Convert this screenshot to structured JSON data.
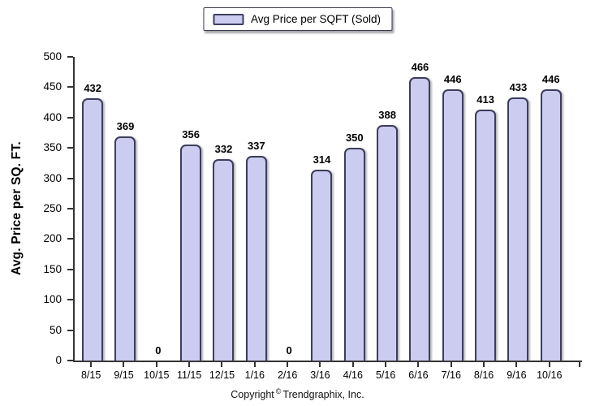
{
  "legend": {
    "swatch_color": "#ccccf0"
  },
  "y_axis": {
    "title": "Avg. Price per SQ. FT."
  },
  "footer": {
    "prefix": "Copyright",
    "symbol": "©",
    "company": "Trendgraphix, Inc."
  },
  "chart_data": {
    "type": "bar",
    "title": "",
    "categories": [
      "8/15",
      "9/15",
      "10/15",
      "11/15",
      "12/15",
      "1/16",
      "2/16",
      "3/16",
      "4/16",
      "5/16",
      "6/16",
      "7/16",
      "8/16",
      "9/16",
      "10/16"
    ],
    "values": [
      432,
      369,
      0,
      356,
      332,
      337,
      0,
      314,
      350,
      388,
      466,
      446,
      413,
      433,
      446
    ],
    "xlabel": "",
    "ylabel": "Avg. Price per SQ. FT.",
    "ylim": [
      0,
      500
    ],
    "ytick_step": 50,
    "grid": false,
    "legend": [
      "Avg Price per SQFT (Sold)"
    ],
    "legend_position": "top-center",
    "bar_fill": "#ccccf0",
    "bar_border": "#3d3d5c",
    "axis_color": "#333333",
    "value_labels": "shown above bars, bold"
  }
}
